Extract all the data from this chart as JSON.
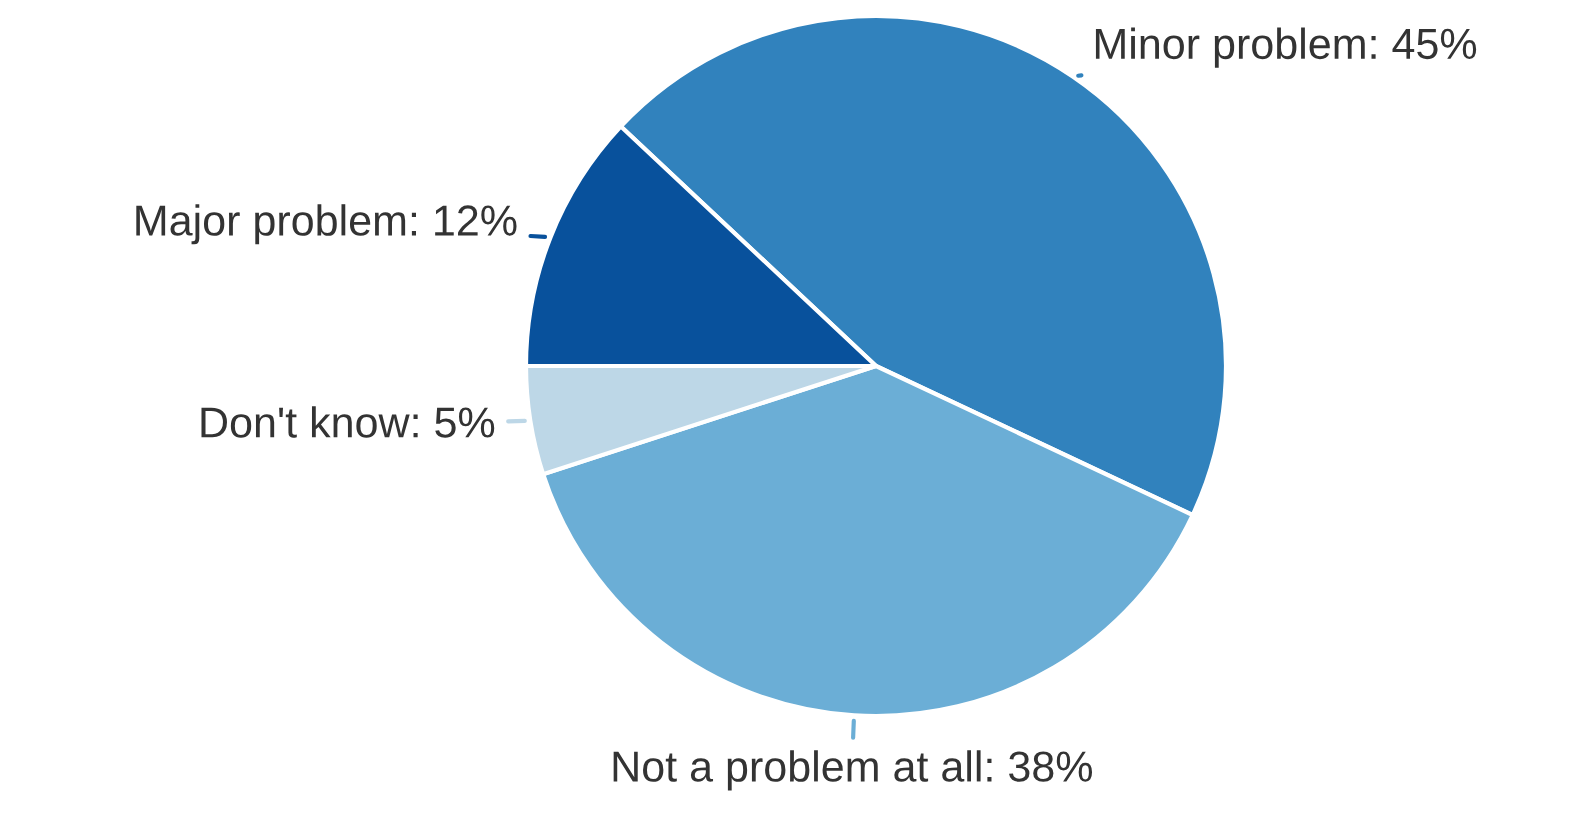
{
  "chart_data": {
    "type": "pie",
    "categories": [
      "Minor problem",
      "Not a problem at all",
      "Don't know",
      "Major problem"
    ],
    "values": [
      45,
      38,
      5,
      12
    ],
    "value_labels": [
      "45%",
      "38%",
      "5%",
      "12%"
    ],
    "colors": [
      "#3182bd",
      "#6baed6",
      "#bdd7e7",
      "#08519c"
    ]
  }
}
